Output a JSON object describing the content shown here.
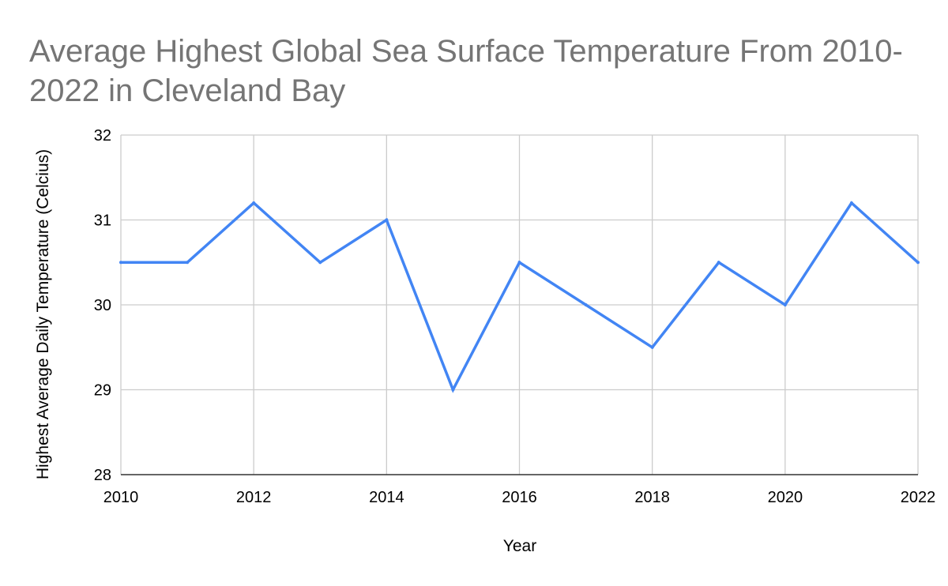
{
  "chart_data": {
    "type": "line",
    "title_lines": [
      "Average Highest Global Sea Surface Temperature From 2010-",
      "2022 in Cleveland Bay"
    ],
    "xlabel": "Year",
    "ylabel": "Highest Average Daily Temperature (Celcius)",
    "x": [
      2010,
      2011,
      2012,
      2013,
      2014,
      2015,
      2016,
      2017,
      2018,
      2019,
      2020,
      2021,
      2022
    ],
    "series": [
      {
        "values": [
          30.5,
          30.5,
          31.2,
          30.5,
          31.0,
          29.0,
          30.5,
          30.0,
          29.5,
          30.5,
          30.0,
          31.2,
          30.5
        ]
      }
    ],
    "xlim": [
      2010,
      2022
    ],
    "ylim": [
      28,
      32
    ],
    "x_ticks": [
      "2010",
      "2012",
      "2014",
      "2016",
      "2018",
      "2020",
      "2022"
    ],
    "y_ticks": [
      "28",
      "29",
      "30",
      "31",
      "32"
    ],
    "grid": true,
    "legend": "none",
    "line_color": "#4285F4",
    "grid_color": "#cccccc",
    "title_color": "#757575"
  }
}
